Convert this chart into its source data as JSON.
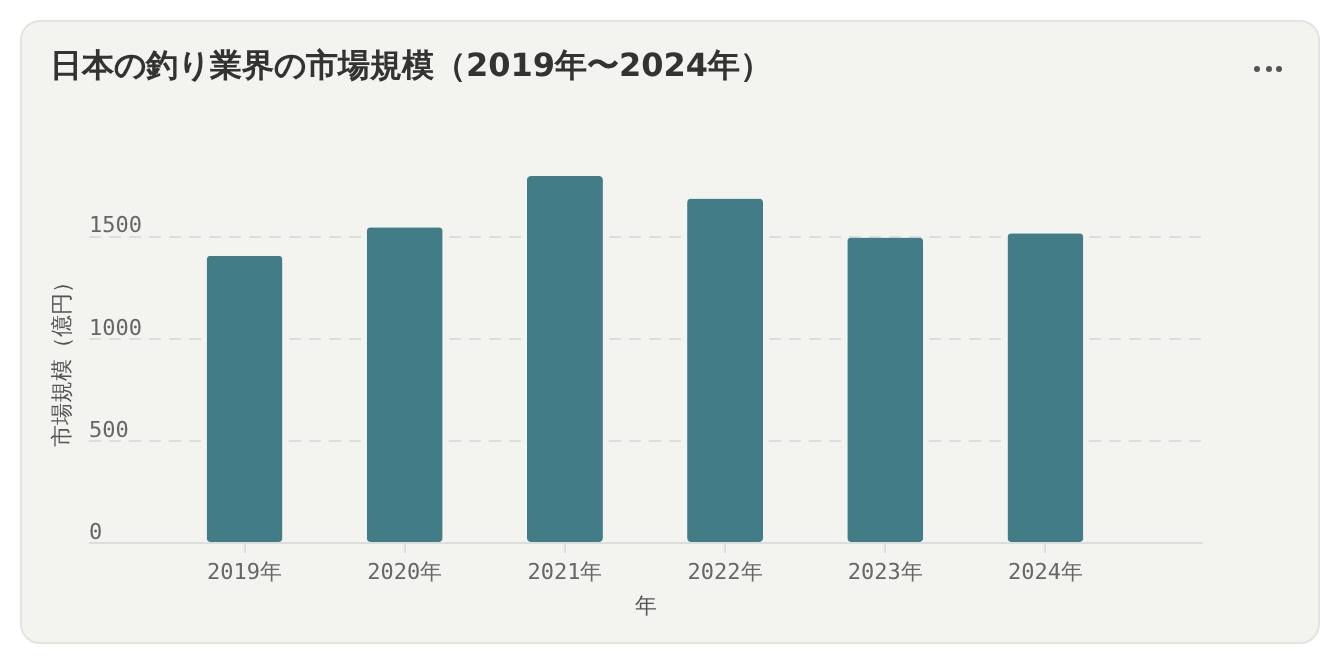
{
  "chart_data": {
    "type": "bar",
    "title": "日本の釣り業界の市場規模（2019年〜2024年）",
    "xlabel": "年",
    "ylabel": "市場規模（億円）",
    "categories": [
      "2019年",
      "2020年",
      "2021年",
      "2022年",
      "2023年",
      "2024年"
    ],
    "values": [
      1400,
      1540,
      1790,
      1680,
      1490,
      1510
    ],
    "color": "#427d87",
    "ylim": [
      0,
      1800
    ],
    "yticks": [
      0,
      500,
      1000,
      1500
    ],
    "grid": "y"
  }
}
